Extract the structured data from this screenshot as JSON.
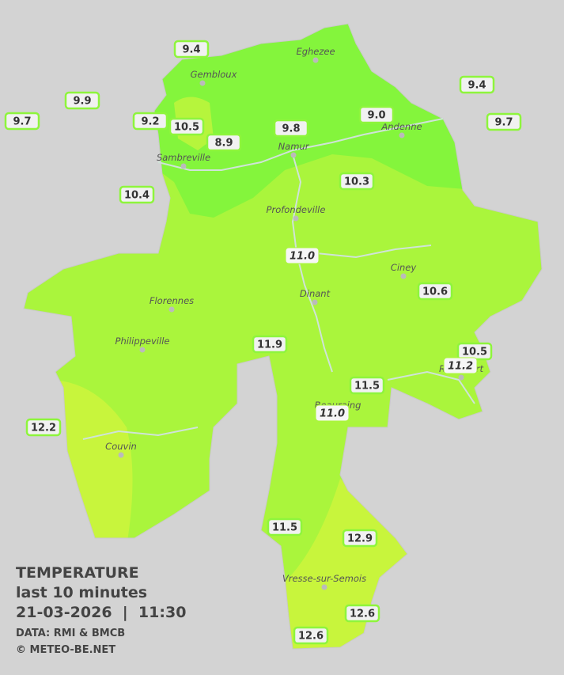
{
  "cities": [
    {
      "name": "Eghezee"
    },
    {
      "name": "Gembloux"
    },
    {
      "name": "Sambreville"
    },
    {
      "name": "Namur"
    },
    {
      "name": "Andenne"
    },
    {
      "name": "Profondeville"
    },
    {
      "name": "Ciney"
    },
    {
      "name": "Florennes"
    },
    {
      "name": "Dinant"
    },
    {
      "name": "Philippeville"
    },
    {
      "name": "Couvin"
    },
    {
      "name": "Vresse-sur-Semois"
    },
    {
      "name": "Beauraing"
    },
    {
      "name": "Rochefort"
    }
  ],
  "readings": [
    {
      "value": "9.4"
    },
    {
      "value": "9.9"
    },
    {
      "value": "9.7"
    },
    {
      "value": "9.2"
    },
    {
      "value": "10.5"
    },
    {
      "value": "8.9"
    },
    {
      "value": "9.8"
    },
    {
      "value": "9.0"
    },
    {
      "value": "9.4"
    },
    {
      "value": "9.7"
    },
    {
      "value": "10.4"
    },
    {
      "value": "10.3"
    },
    {
      "value": "11.0",
      "style": "italic"
    },
    {
      "value": "10.6"
    },
    {
      "value": "11.9"
    },
    {
      "value": "10.5"
    },
    {
      "value": "11.2",
      "style": "italic"
    },
    {
      "value": "11.5"
    },
    {
      "value": "11.0",
      "style": "italic"
    },
    {
      "value": "12.2"
    },
    {
      "value": "11.5"
    },
    {
      "value": "12.9"
    },
    {
      "value": "12.6"
    },
    {
      "value": "12.6"
    }
  ],
  "legend": {
    "title": "TEMPERATURE",
    "period": "last 10 minutes",
    "timestamp": "21-03-2026  |  11:30",
    "source": "DATA: RMI & BMCB",
    "credit": "© METEO-BE.NET"
  }
}
